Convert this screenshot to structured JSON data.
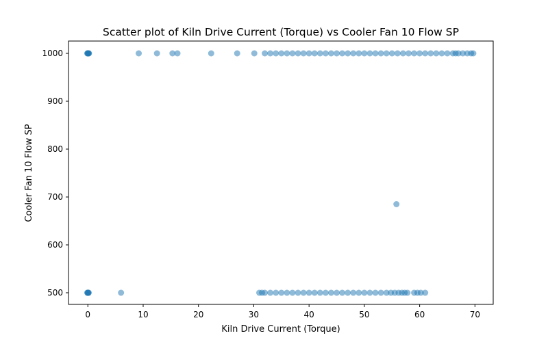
{
  "chart_data": {
    "type": "scatter",
    "title": "Scatter plot of Kiln Drive Current (Torque) vs Cooler Fan 10 Flow SP",
    "xlabel": "Kiln Drive Current (Torque)",
    "ylabel": "Cooler Fan 10 Flow SP",
    "xlim": [
      -3.5,
      73.3
    ],
    "ylim": [
      475,
      1000
    ],
    "xticks": [
      0,
      10,
      20,
      30,
      40,
      50,
      60,
      70
    ],
    "yticks": [
      500,
      600,
      700,
      800,
      900,
      1000
    ],
    "grid": false,
    "legend": "none",
    "marker_color": "#1f77b4",
    "marker_alpha": 0.5,
    "series": [
      {
        "points": [
          [
            0,
            1000
          ],
          [
            0.05,
            1000
          ],
          [
            0.1,
            1000
          ],
          [
            0.15,
            1000
          ],
          [
            -0.1,
            1000
          ],
          [
            -0.05,
            1000
          ],
          [
            0.2,
            1000
          ],
          [
            9.2,
            1000
          ],
          [
            12.5,
            1000
          ],
          [
            15.3,
            1000
          ],
          [
            16.2,
            1000
          ],
          [
            22.3,
            1000
          ],
          [
            27.0,
            1000
          ],
          [
            30.1,
            1000
          ],
          [
            32.0,
            1000
          ],
          [
            33.0,
            1000
          ],
          [
            34.0,
            1000
          ],
          [
            35.0,
            1000
          ],
          [
            36.0,
            1000
          ],
          [
            37.0,
            1000
          ],
          [
            38.0,
            1000
          ],
          [
            39.0,
            1000
          ],
          [
            40.0,
            1000
          ],
          [
            41.0,
            1000
          ],
          [
            42.0,
            1000
          ],
          [
            43.0,
            1000
          ],
          [
            44.0,
            1000
          ],
          [
            45.0,
            1000
          ],
          [
            46.0,
            1000
          ],
          [
            47.0,
            1000
          ],
          [
            48.0,
            1000
          ],
          [
            49.0,
            1000
          ],
          [
            50.0,
            1000
          ],
          [
            51.0,
            1000
          ],
          [
            52.0,
            1000
          ],
          [
            53.0,
            1000
          ],
          [
            54.0,
            1000
          ],
          [
            55.0,
            1000
          ],
          [
            56.0,
            1000
          ],
          [
            57.0,
            1000
          ],
          [
            58.0,
            1000
          ],
          [
            59.0,
            1000
          ],
          [
            60.0,
            1000
          ],
          [
            61.0,
            1000
          ],
          [
            62.0,
            1000
          ],
          [
            63.0,
            1000
          ],
          [
            64.0,
            1000
          ],
          [
            65.0,
            1000
          ],
          [
            66.0,
            1000
          ],
          [
            66.5,
            1000
          ],
          [
            67.0,
            1000
          ],
          [
            67.8,
            1000
          ],
          [
            68.6,
            1000
          ],
          [
            69.3,
            1000
          ],
          [
            69.7,
            1000
          ],
          [
            55.8,
            685
          ],
          [
            0,
            500
          ],
          [
            0.05,
            500
          ],
          [
            0.1,
            500
          ],
          [
            -0.1,
            500
          ],
          [
            -0.05,
            500
          ],
          [
            0.15,
            500
          ],
          [
            6.0,
            500
          ],
          [
            31.0,
            500
          ],
          [
            31.5,
            500
          ],
          [
            32.0,
            500
          ],
          [
            33.0,
            500
          ],
          [
            34.0,
            500
          ],
          [
            35.0,
            500
          ],
          [
            36.0,
            500
          ],
          [
            37.0,
            500
          ],
          [
            38.0,
            500
          ],
          [
            39.0,
            500
          ],
          [
            40.0,
            500
          ],
          [
            41.0,
            500
          ],
          [
            42.0,
            500
          ],
          [
            43.0,
            500
          ],
          [
            44.0,
            500
          ],
          [
            45.0,
            500
          ],
          [
            46.0,
            500
          ],
          [
            47.0,
            500
          ],
          [
            48.0,
            500
          ],
          [
            49.0,
            500
          ],
          [
            50.0,
            500
          ],
          [
            51.0,
            500
          ],
          [
            52.0,
            500
          ],
          [
            53.0,
            500
          ],
          [
            54.0,
            500
          ],
          [
            54.8,
            500
          ],
          [
            55.5,
            500
          ],
          [
            56.2,
            500
          ],
          [
            56.8,
            500
          ],
          [
            57.3,
            500
          ],
          [
            57.8,
            500
          ],
          [
            59.0,
            500
          ],
          [
            59.6,
            500
          ],
          [
            60.2,
            500
          ],
          [
            61.0,
            500
          ]
        ]
      }
    ]
  }
}
